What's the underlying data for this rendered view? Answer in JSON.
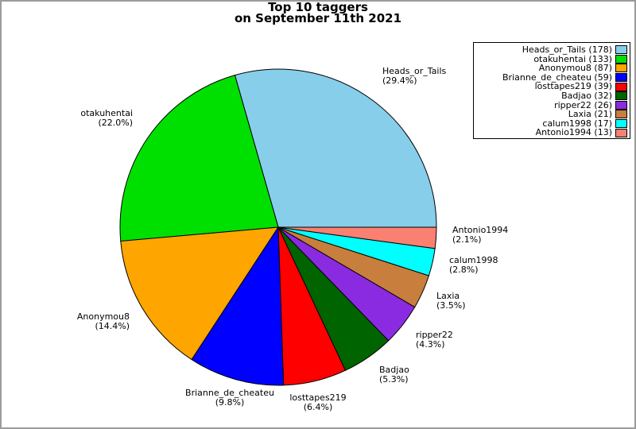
{
  "chart_data": {
    "type": "pie",
    "title": "Top 10 taggers",
    "subtitle": "on September 11th 2021",
    "start_angle_deg": 0,
    "direction": "counterclockwise",
    "legend_position": "top-right",
    "series": [
      {
        "name": "Heads_or_Tails",
        "count": 178,
        "pct": 29.4,
        "color": "#87CEEB"
      },
      {
        "name": "otakuhentai",
        "count": 133,
        "pct": 22.0,
        "color": "#00E000"
      },
      {
        "name": "Anonymou8",
        "count": 87,
        "pct": 14.4,
        "color": "#FFA500"
      },
      {
        "name": "Brianne_de_cheateu",
        "count": 59,
        "pct": 9.8,
        "color": "#0000FF"
      },
      {
        "name": "losttapes219",
        "count": 39,
        "pct": 6.4,
        "color": "#FF0000"
      },
      {
        "name": "Badjao",
        "count": 32,
        "pct": 5.3,
        "color": "#006400"
      },
      {
        "name": "ripper22",
        "count": 26,
        "pct": 4.3,
        "color": "#8A2BE2"
      },
      {
        "name": "Laxia",
        "count": 21,
        "pct": 3.5,
        "color": "#C87E3C"
      },
      {
        "name": "calum1998",
        "count": 17,
        "pct": 2.8,
        "color": "#00FFFF"
      },
      {
        "name": "Antonio1994",
        "count": 13,
        "pct": 2.1,
        "color": "#FA8072"
      }
    ]
  }
}
